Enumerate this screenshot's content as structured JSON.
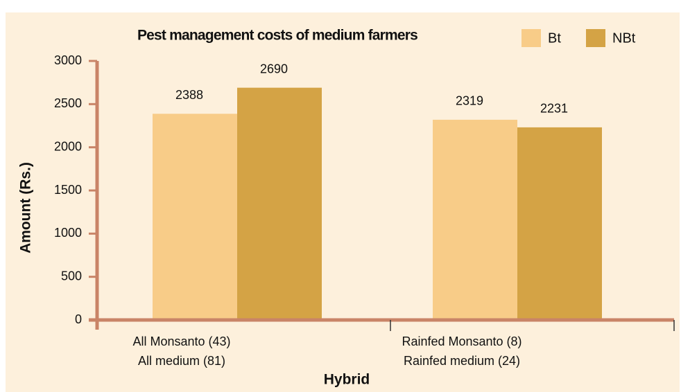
{
  "chart_data": {
    "type": "bar",
    "title": "Pest management costs of medium farmers",
    "categories": [
      [
        "All Monsanto (43)",
        "All medium (81)"
      ],
      [
        "Rainfed Monsanto (8)",
        "Rainfed medium (24)"
      ]
    ],
    "series": [
      {
        "name": "Bt",
        "color": "#f8cc88",
        "values": [
          2388,
          2319
        ]
      },
      {
        "name": "NBt",
        "color": "#d4a345",
        "values": [
          2690,
          2231
        ]
      }
    ],
    "ylim": [
      0,
      3000
    ],
    "yticks": [
      0,
      500,
      1000,
      1500,
      2000,
      2500,
      3000
    ],
    "y_label": "Amount (Rs.)",
    "x_label": "Hybrid",
    "legend": "top-right"
  }
}
